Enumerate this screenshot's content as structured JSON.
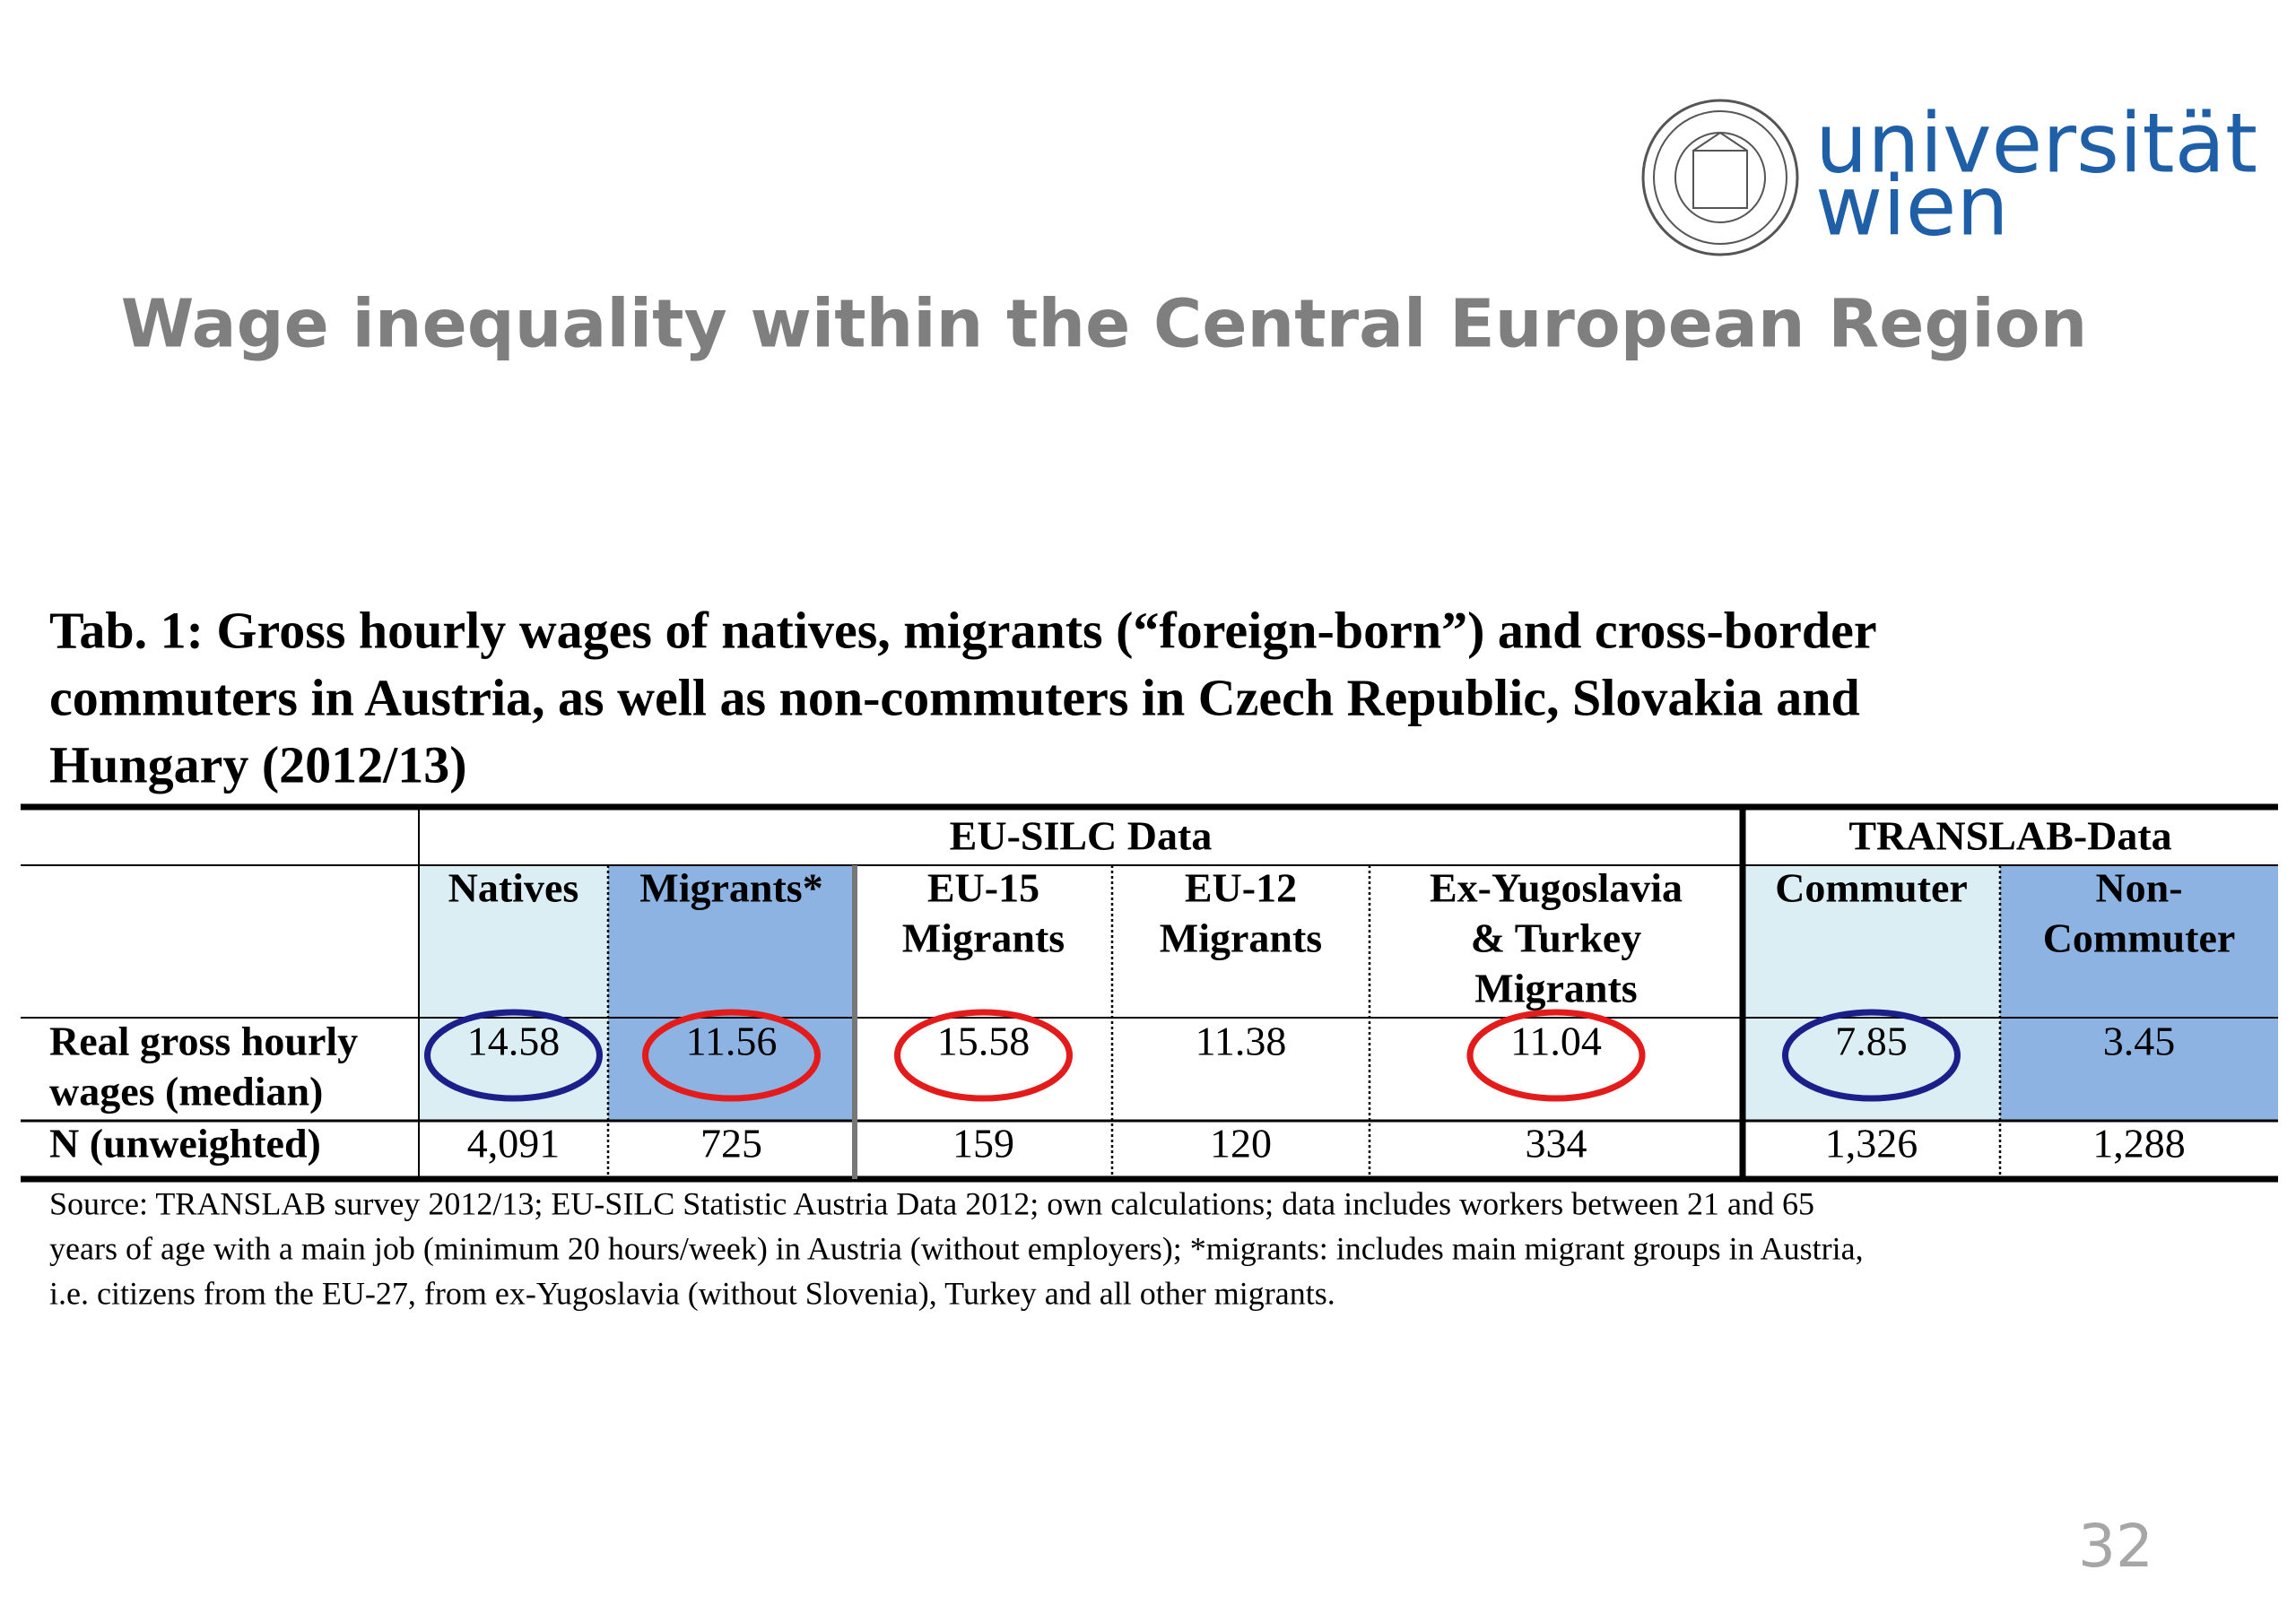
{
  "header": {
    "logo": [
      "universität",
      "wien"
    ],
    "title": "Wage inequality within the Central European Region"
  },
  "table": {
    "caption": [
      "Tab. 1: Gross hourly wages of natives, migrants (“foreign-born”) and cross-border",
      "commuters in Austria, as well as non-commuters in Czech Republic, Slovakia and",
      "Hungary (2012/13)"
    ],
    "groups": [
      "EU-SILC Data",
      "TRANSLAB-Data"
    ],
    "columns": [
      [
        "Natives"
      ],
      [
        "Migrants*"
      ],
      [
        "EU-15",
        "Migrants"
      ],
      [
        "EU-12",
        "Migrants"
      ],
      [
        "Ex-Yugoslavia",
        "& Turkey",
        "Migrants"
      ],
      [
        "Commuter"
      ],
      [
        "Non-",
        "Commuter"
      ]
    ],
    "rows": [
      {
        "label": [
          "Real gross hourly",
          "wages (median)"
        ],
        "cells": [
          "14.58",
          "11.56",
          "15.58",
          "11.38",
          "11.04",
          "7.85",
          "3.45"
        ]
      },
      {
        "label": [
          "N (unweighted)"
        ],
        "cells": [
          "4,091",
          "725",
          "159",
          "120",
          "334",
          "1,326",
          "1,288"
        ]
      }
    ]
  },
  "source": [
    "Source: TRANSLAB survey 2012/13; EU-SILC Statistic Austria Data 2012; own calculations; data includes workers between 21 and 65",
    "years of age with a main job (minimum 20 hours/week) in Austria (without employers); *migrants: includes main migrant groups in Austria,",
    "i.e. citizens from the EU-27, from ex-Yugoslavia (without Slovenia), Turkey and all other migrants."
  ],
  "page_number": "32"
}
